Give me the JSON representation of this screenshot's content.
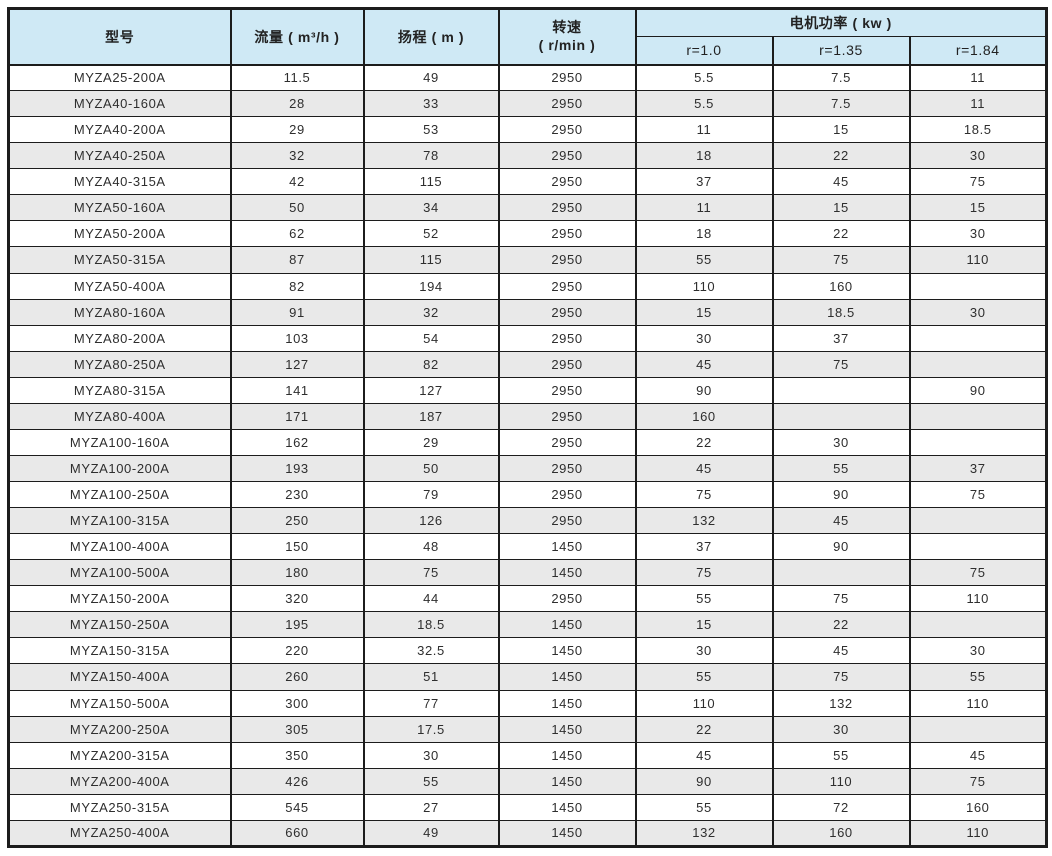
{
  "table": {
    "headers": {
      "model": "型号",
      "flow": "流量 ( m³/h )",
      "head": "扬程 ( m )",
      "speed_line1": "转速",
      "speed_line2": "( r/min )",
      "power_group": "电机功率 ( kw )",
      "power_cols": [
        "r=1.0",
        "r=1.35",
        "r=1.84"
      ]
    },
    "rows": [
      [
        "MYZA25-200A",
        "11.5",
        "49",
        "2950",
        "5.5",
        "7.5",
        "11"
      ],
      [
        "MYZA40-160A",
        "28",
        "33",
        "2950",
        "5.5",
        "7.5",
        "11"
      ],
      [
        "MYZA40-200A",
        "29",
        "53",
        "2950",
        "11",
        "15",
        "18.5"
      ],
      [
        "MYZA40-250A",
        "32",
        "78",
        "2950",
        "18",
        "22",
        "30"
      ],
      [
        "MYZA40-315A",
        "42",
        "115",
        "2950",
        "37",
        "45",
        "75"
      ],
      [
        "MYZA50-160A",
        "50",
        "34",
        "2950",
        "11",
        "15",
        "15"
      ],
      [
        "MYZA50-200A",
        "62",
        "52",
        "2950",
        "18",
        "22",
        "30"
      ],
      [
        "MYZA50-315A",
        "87",
        "115",
        "2950",
        "55",
        "75",
        "110"
      ],
      [
        "MYZA50-400A",
        "82",
        "194",
        "2950",
        "110",
        "160",
        ""
      ],
      [
        "MYZA80-160A",
        "91",
        "32",
        "2950",
        "15",
        "18.5",
        "30"
      ],
      [
        "MYZA80-200A",
        "103",
        "54",
        "2950",
        "30",
        "37",
        ""
      ],
      [
        "MYZA80-250A",
        "127",
        "82",
        "2950",
        "45",
        "75",
        ""
      ],
      [
        "MYZA80-315A",
        "141",
        "127",
        "2950",
        "90",
        "",
        "90"
      ],
      [
        "MYZA80-400A",
        "171",
        "187",
        "2950",
        "160",
        "",
        ""
      ],
      [
        "MYZA100-160A",
        "162",
        "29",
        "2950",
        "22",
        "30",
        ""
      ],
      [
        "MYZA100-200A",
        "193",
        "50",
        "2950",
        "45",
        "55",
        "37"
      ],
      [
        "MYZA100-250A",
        "230",
        "79",
        "2950",
        "75",
        "90",
        "75"
      ],
      [
        "MYZA100-315A",
        "250",
        "126",
        "2950",
        "132",
        "45",
        ""
      ],
      [
        "MYZA100-400A",
        "150",
        "48",
        "1450",
        "37",
        "90",
        ""
      ],
      [
        "MYZA100-500A",
        "180",
        "75",
        "1450",
        "75",
        "",
        "75"
      ],
      [
        "MYZA150-200A",
        "320",
        "44",
        "2950",
        "55",
        "75",
        "110"
      ],
      [
        "MYZA150-250A",
        "195",
        "18.5",
        "1450",
        "15",
        "22",
        ""
      ],
      [
        "MYZA150-315A",
        "220",
        "32.5",
        "1450",
        "30",
        "45",
        "30"
      ],
      [
        "MYZA150-400A",
        "260",
        "51",
        "1450",
        "55",
        "75",
        "55"
      ],
      [
        "MYZA150-500A",
        "300",
        "77",
        "1450",
        "110",
        "132",
        "110"
      ],
      [
        "MYZA200-250A",
        "305",
        "17.5",
        "1450",
        "22",
        "30",
        ""
      ],
      [
        "MYZA200-315A",
        "350",
        "30",
        "1450",
        "45",
        "55",
        "45"
      ],
      [
        "MYZA200-400A",
        "426",
        "55",
        "1450",
        "90",
        "110",
        "75"
      ],
      [
        "MYZA250-315A",
        "545",
        "27",
        "1450",
        "55",
        "72",
        "160"
      ],
      [
        "MYZA250-400A",
        "660",
        "49",
        "1450",
        "132",
        "160",
        "110"
      ]
    ]
  },
  "colors": {
    "header_bg": "#cfe9f5",
    "row_alt_bg": "#e9e9e9",
    "row_bg": "#ffffff",
    "border": "#1c1c1c",
    "text": "#2e2e2e"
  }
}
